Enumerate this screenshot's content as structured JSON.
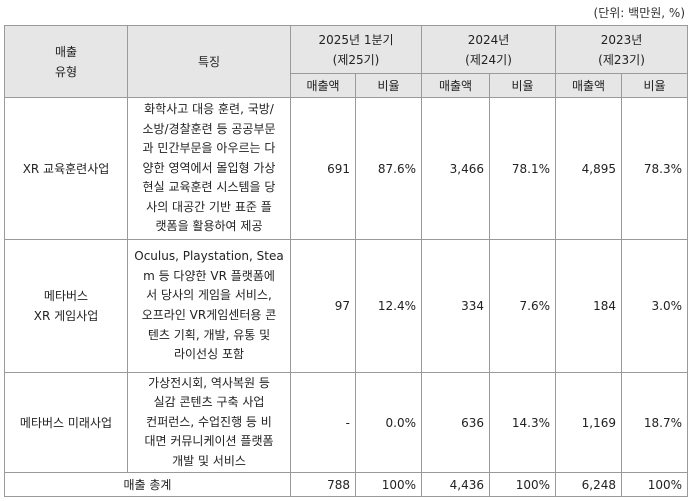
{
  "unit_note": "(단위: 백만원, %)",
  "headers": {
    "type_line1": "매출",
    "type_line2": "유형",
    "feature": "특징",
    "periods": [
      {
        "year": "2025년 1분기",
        "term": "(제25기)"
      },
      {
        "year": "2024년",
        "term": "(제24기)"
      },
      {
        "year": "2023년",
        "term": "(제23기)"
      }
    ],
    "sales": "매출액",
    "ratio": "비율"
  },
  "rows": [
    {
      "type_line1": "XR 교육훈련사업",
      "type_line2": "",
      "desc": [
        "화학사고 대응 훈련, 국방/",
        "소방/경찰훈련 등 공공부문",
        "과 민간부문을 아우르는 다",
        "양한 영역에서 몰입형 가상",
        "현실 교육훈련 시스템을 당",
        "사의 대공간 기반 표준 플",
        "랫폼을 활용하여 제공"
      ],
      "s1": "691",
      "r1": "87.6%",
      "s2": "3,466",
      "r2": "78.1%",
      "s3": "4,895",
      "r3": "78.3%"
    },
    {
      "type_line1": "메타버스",
      "type_line2": "XR 게임사업",
      "desc": [
        "Oculus, Playstation, Stea",
        "m 등 다양한 VR 플랫폼에",
        "서 당사의 게임을 서비스,",
        "오프라인 VR게임센터용 콘",
        "텐츠 기획, 개발, 유통 및",
        "라이선싱 포함"
      ],
      "s1": "97",
      "r1": "12.4%",
      "s2": "334",
      "r2": "7.6%",
      "s3": "184",
      "r3": "3.0%"
    },
    {
      "type_line1": "메타버스 미래사업",
      "type_line2": "",
      "desc": [
        "가상전시회, 역사복원 등",
        "실감 콘텐츠 구축 사업",
        "컨퍼런스, 수업진행 등 비",
        "대면 커뮤니케이션 플랫폼",
        "개발 및 서비스"
      ],
      "s1": "-",
      "r1": "0.0%",
      "s2": "636",
      "r2": "14.3%",
      "s3": "1,169",
      "r3": "18.7%"
    }
  ],
  "total": {
    "label": "매출 총계",
    "s1": "788",
    "r1": "100%",
    "s2": "4,436",
    "r2": "100%",
    "s3": "6,248",
    "r3": "100%"
  }
}
